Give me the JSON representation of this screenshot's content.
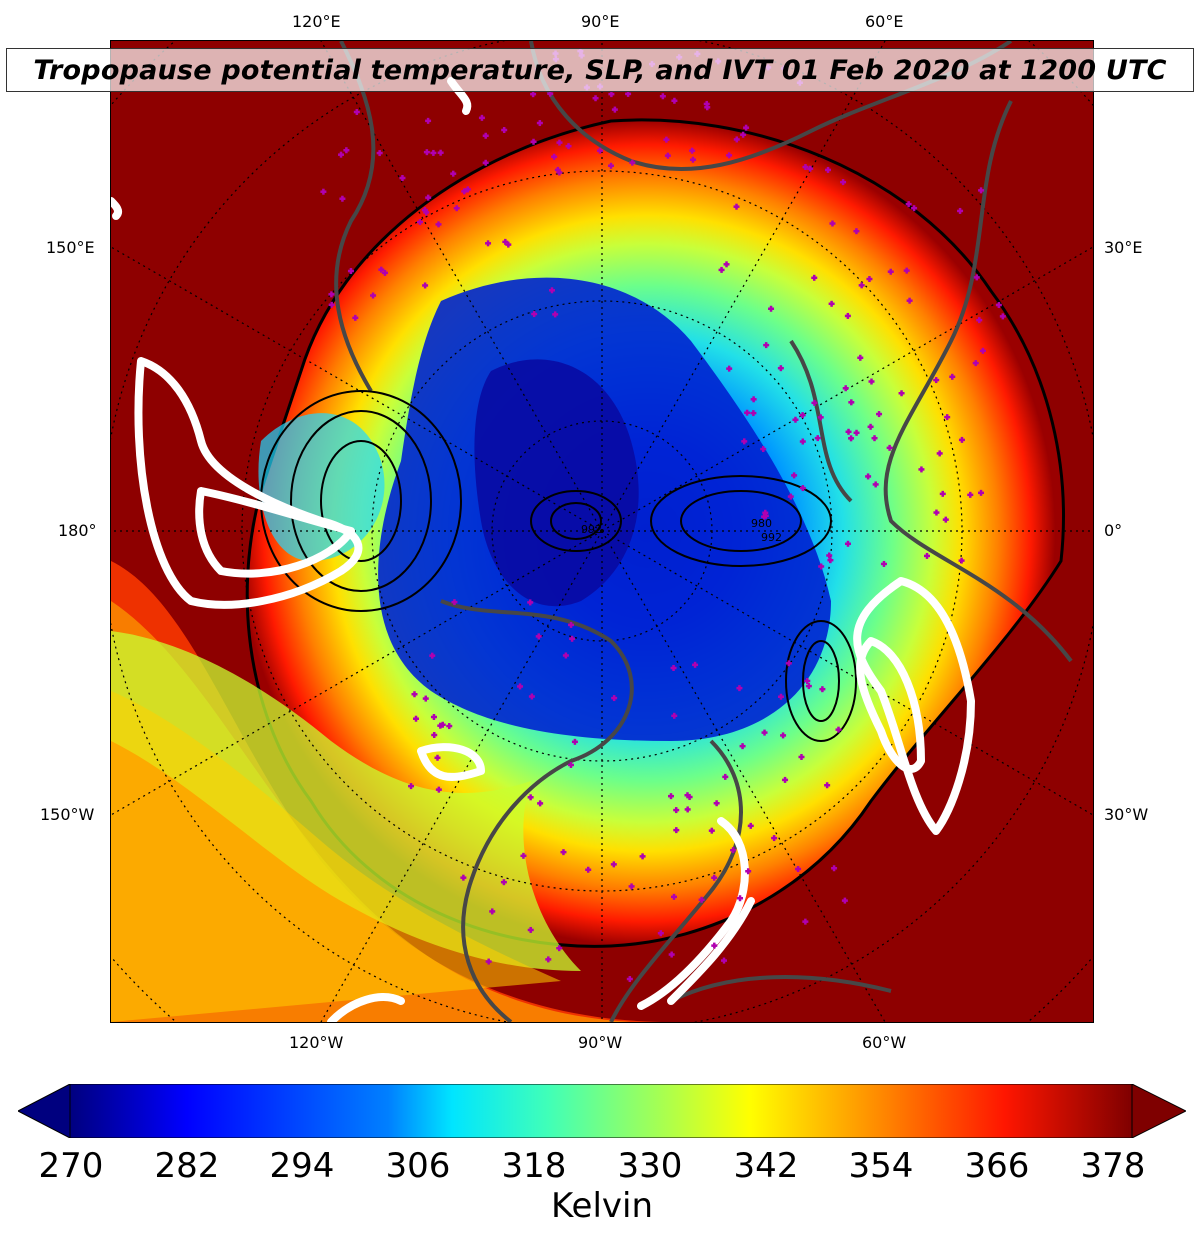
{
  "title": "Tropopause potential temperature, SLP, and IVT 01 Feb 2020 at 1200 UTC",
  "longitude_labels": {
    "top": [
      "120°E",
      "90°E",
      "60°E"
    ],
    "bottom": [
      "120°W",
      "90°W",
      "60°W"
    ],
    "left": [
      "150°E",
      "180°",
      "150°W"
    ],
    "right": [
      "30°E",
      "0°",
      "30°W"
    ]
  },
  "slp_contour_labels": [
    "980",
    "992",
    "992"
  ],
  "colorbar": {
    "ticks": [
      "270",
      "282",
      "294",
      "306",
      "318",
      "330",
      "342",
      "354",
      "366",
      "378"
    ],
    "label": "Kelvin",
    "range": [
      270,
      378
    ],
    "extend": "both",
    "colormap": "jet"
  },
  "colors": {
    "deep_blue": "#00007f",
    "blue": "#0000ff",
    "cyan": "#00e5ff",
    "green": "#7fff7f",
    "yellow": "#ffff00",
    "orange": "#ff7f00",
    "red": "#ff0000",
    "dark_red": "#7f0000",
    "ivt_contour": "#ffffff",
    "coastline": "#4a4a4a",
    "station_marker": "#b000b0"
  },
  "projection": "north-polar-stereographic"
}
